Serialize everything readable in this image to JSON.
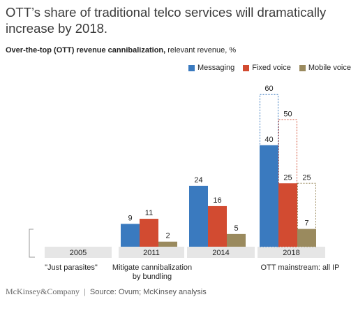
{
  "headline": "OTT’s share of traditional telco services will dramatically increase by 2018.",
  "subtitle_bold": "Over-the-top (OTT) revenue cannibalization,",
  "subtitle_rest": " relevant revenue, %",
  "colors": {
    "messaging": "#3a7abf",
    "fixed_voice": "#d24b31",
    "mobile_voice": "#9a8a5e"
  },
  "chart_data": {
    "type": "bar",
    "categories": [
      "2005",
      "2011",
      "2014",
      "2018"
    ],
    "series": [
      {
        "name": "Messaging",
        "values": [
          null,
          9,
          24,
          40
        ],
        "projected": [
          null,
          null,
          null,
          60
        ]
      },
      {
        "name": "Fixed voice",
        "values": [
          null,
          11,
          16,
          25
        ],
        "projected": [
          null,
          null,
          null,
          50
        ]
      },
      {
        "name": "Mobile voice",
        "values": [
          null,
          2,
          5,
          7
        ],
        "projected": [
          null,
          null,
          null,
          25
        ]
      }
    ],
    "phases": [
      {
        "label": "\"Just parasites\"",
        "categories": [
          "2005"
        ]
      },
      {
        "label": "Mitigate cannibalization by bundling",
        "categories": [
          "2011",
          "2014"
        ]
      },
      {
        "label": "OTT mainstream: all IP",
        "categories": [
          "2018"
        ]
      }
    ],
    "legend": "top-right",
    "ylim": [
      0,
      60
    ]
  },
  "footer": {
    "brand": "McKinsey&Company",
    "separator": "|",
    "source": "Source: Ovum; McKinsey analysis"
  }
}
